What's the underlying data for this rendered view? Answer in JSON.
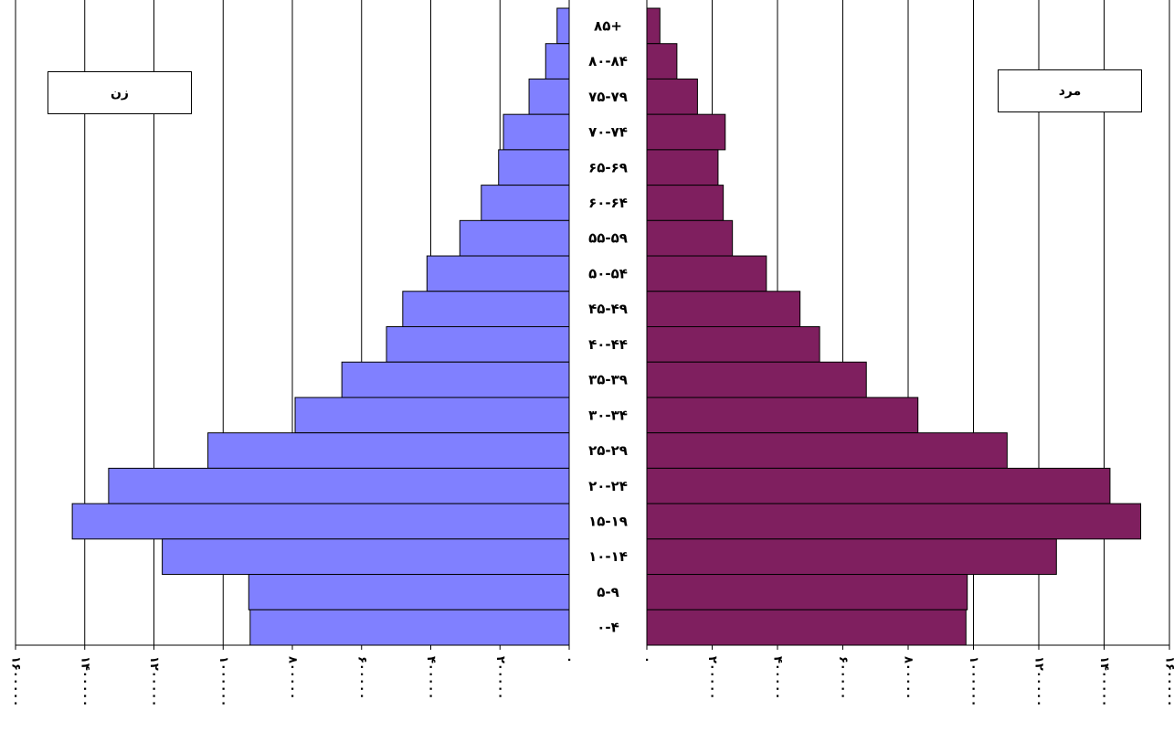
{
  "chart_data": {
    "type": "bar",
    "orientation": "horizontal",
    "subtype": "population-pyramid",
    "categories": [
      "۸۵+",
      "۸۰-۸۴",
      "۷۵-۷۹",
      "۷۰-۷۴",
      "۶۵-۶۹",
      "۶۰-۶۴",
      "۵۵-۵۹",
      "۵۰-۵۴",
      "۴۵-۴۹",
      "۴۰-۴۴",
      "۳۵-۳۹",
      "۳۰-۳۴",
      "۲۵-۲۹",
      "۲۰-۲۴",
      "۱۵-۱۹",
      "۱۰-۱۴",
      "۵-۹",
      "۰-۴"
    ],
    "series": [
      {
        "name": "زن",
        "side": "left",
        "color": "#8080ff",
        "values": [
          35000,
          68000,
          116000,
          190000,
          204000,
          254000,
          316000,
          411000,
          481000,
          528000,
          657000,
          792000,
          1044000,
          1331000,
          1436000,
          1176000,
          926000,
          922000
        ]
      },
      {
        "name": "مرد",
        "side": "right",
        "color": "#7f1f5f",
        "values": [
          40000,
          92000,
          155000,
          240000,
          218000,
          234000,
          262000,
          366000,
          469000,
          529000,
          672000,
          830000,
          1103000,
          1418000,
          1512000,
          1254000,
          981000,
          977000
        ]
      }
    ],
    "left_axis_ticks": [
      "۱۶۰۰۰۰۰",
      "۱۴۰۰۰۰۰",
      "۱۲۰۰۰۰۰",
      "۱۰۰۰۰۰۰",
      "۸۰۰۰۰۰",
      "۶۰۰۰۰۰",
      "۴۰۰۰۰۰",
      "۲۰۰۰۰۰",
      "۰"
    ],
    "right_axis_ticks": [
      "۰",
      "۲۰۰۰۰۰",
      "۴۰۰۰۰۰",
      "۶۰۰۰۰۰",
      "۸۰۰۰۰۰",
      "۱۰۰۰۰۰۰",
      "۱۲۰۰۰۰۰",
      "۱۴۰۰۰۰۰",
      "۱۶۰۰۰۰۰"
    ],
    "xlim": [
      0,
      1600000
    ],
    "grid": true,
    "legend": [
      "زن",
      "مرد"
    ]
  }
}
